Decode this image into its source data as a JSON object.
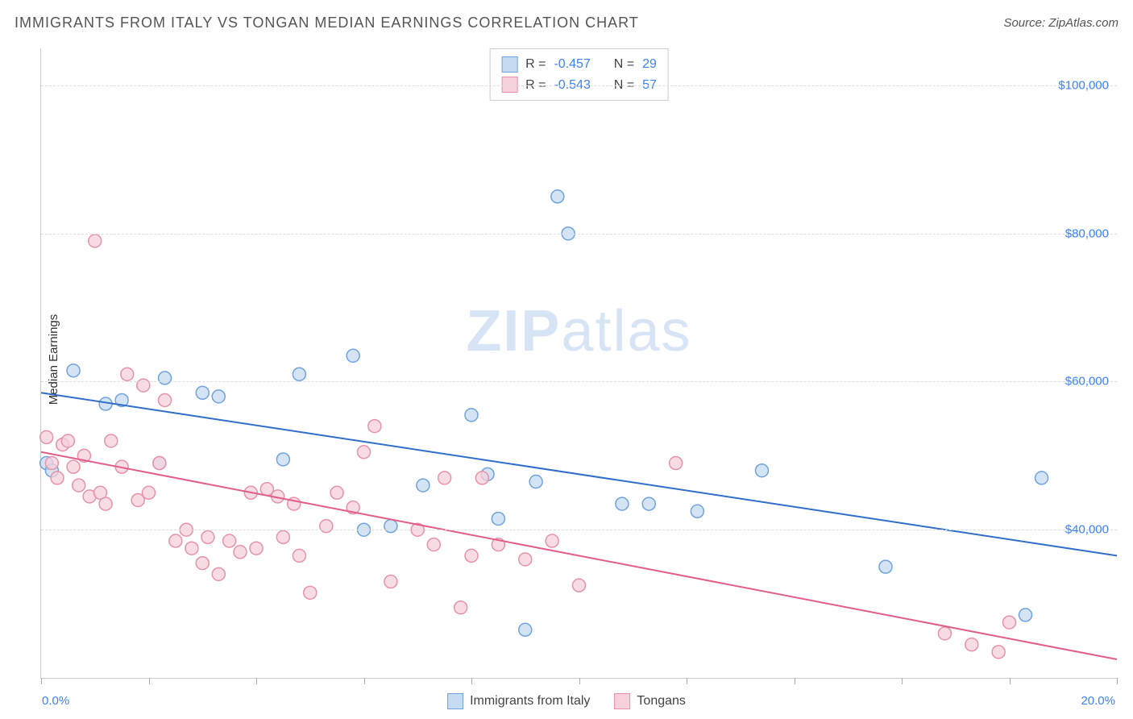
{
  "title": "IMMIGRANTS FROM ITALY VS TONGAN MEDIAN EARNINGS CORRELATION CHART",
  "source": "Source: ZipAtlas.com",
  "ylabel": "Median Earnings",
  "watermark_a": "ZIP",
  "watermark_b": "atlas",
  "chart": {
    "type": "scatter",
    "xlim": [
      0,
      20
    ],
    "ylim": [
      20000,
      105000
    ],
    "background_color": "#ffffff",
    "grid_color": "#dddddd",
    "x_ticks": [
      0,
      2,
      4,
      6,
      8,
      10,
      12,
      14,
      16,
      18,
      20
    ],
    "x_tick_labels": {
      "0": "0.0%",
      "20": "20.0%"
    },
    "y_gridlines": [
      40000,
      60000,
      80000,
      100000
    ],
    "y_tick_labels": {
      "40000": "$40,000",
      "60000": "$60,000",
      "80000": "$80,000",
      "100000": "$100,000"
    },
    "label_color": "#3b82f6",
    "axis_label_color": "#333333",
    "marker_radius": 8,
    "marker_stroke_width": 1.5,
    "line_width": 2
  },
  "series": [
    {
      "name": "Immigrants from Italy",
      "fill": "#c5dbf2",
      "stroke": "#6fa3dd",
      "line_color": "#2f6fc9",
      "R": "-0.457",
      "N": "29",
      "trend": {
        "x1": 0,
        "y1": 58500,
        "x2": 20,
        "y2": 36500
      },
      "points": [
        [
          0.1,
          49000
        ],
        [
          0.2,
          48000
        ],
        [
          0.6,
          61500
        ],
        [
          1.2,
          57000
        ],
        [
          1.5,
          57500
        ],
        [
          2.3,
          60500
        ],
        [
          2.2,
          49000
        ],
        [
          3.0,
          58500
        ],
        [
          3.3,
          58000
        ],
        [
          4.8,
          61000
        ],
        [
          4.5,
          49500
        ],
        [
          5.8,
          63500
        ],
        [
          6.0,
          40000
        ],
        [
          6.5,
          40500
        ],
        [
          7.1,
          46000
        ],
        [
          8.0,
          55500
        ],
        [
          8.3,
          47500
        ],
        [
          8.5,
          41500
        ],
        [
          9.0,
          26500
        ],
        [
          9.2,
          46500
        ],
        [
          9.6,
          85000
        ],
        [
          9.8,
          80000
        ],
        [
          10.8,
          43500
        ],
        [
          11.3,
          43500
        ],
        [
          12.2,
          42500
        ],
        [
          13.4,
          48000
        ],
        [
          15.7,
          35000
        ],
        [
          18.3,
          28500
        ],
        [
          18.6,
          47000
        ]
      ]
    },
    {
      "name": "Tongans",
      "fill": "#f6d0da",
      "stroke": "#e692a8",
      "line_color": "#e15f86",
      "R": "-0.543",
      "N": "57",
      "trend": {
        "x1": 0,
        "y1": 50500,
        "x2": 20,
        "y2": 22500
      },
      "points": [
        [
          0.1,
          52500
        ],
        [
          0.2,
          49000
        ],
        [
          0.3,
          47000
        ],
        [
          0.4,
          51500
        ],
        [
          0.5,
          52000
        ],
        [
          0.6,
          48500
        ],
        [
          0.7,
          46000
        ],
        [
          0.8,
          50000
        ],
        [
          0.9,
          44500
        ],
        [
          1.0,
          79000
        ],
        [
          1.1,
          45000
        ],
        [
          1.2,
          43500
        ],
        [
          1.3,
          52000
        ],
        [
          1.5,
          48500
        ],
        [
          1.6,
          61000
        ],
        [
          1.8,
          44000
        ],
        [
          1.9,
          59500
        ],
        [
          2.0,
          45000
        ],
        [
          2.2,
          49000
        ],
        [
          2.3,
          57500
        ],
        [
          2.5,
          38500
        ],
        [
          2.7,
          40000
        ],
        [
          2.8,
          37500
        ],
        [
          3.0,
          35500
        ],
        [
          3.1,
          39000
        ],
        [
          3.3,
          34000
        ],
        [
          3.5,
          38500
        ],
        [
          3.7,
          37000
        ],
        [
          3.9,
          45000
        ],
        [
          4.0,
          37500
        ],
        [
          4.2,
          45500
        ],
        [
          4.4,
          44500
        ],
        [
          4.5,
          39000
        ],
        [
          4.7,
          43500
        ],
        [
          4.8,
          36500
        ],
        [
          5.0,
          31500
        ],
        [
          5.3,
          40500
        ],
        [
          5.5,
          45000
        ],
        [
          5.8,
          43000
        ],
        [
          6.0,
          50500
        ],
        [
          6.2,
          54000
        ],
        [
          6.5,
          33000
        ],
        [
          7.0,
          40000
        ],
        [
          7.3,
          38000
        ],
        [
          7.5,
          47000
        ],
        [
          7.8,
          29500
        ],
        [
          8.0,
          36500
        ],
        [
          8.2,
          47000
        ],
        [
          8.5,
          38000
        ],
        [
          9.0,
          36000
        ],
        [
          9.5,
          38500
        ],
        [
          10.0,
          32500
        ],
        [
          11.8,
          49000
        ],
        [
          16.8,
          26000
        ],
        [
          17.3,
          24500
        ],
        [
          17.8,
          23500
        ],
        [
          18.0,
          27500
        ]
      ]
    }
  ],
  "stats_legend": {
    "r_label": "R =",
    "n_label": "N ="
  },
  "bottom_legend": {
    "items": [
      "Immigrants from Italy",
      "Tongans"
    ]
  }
}
